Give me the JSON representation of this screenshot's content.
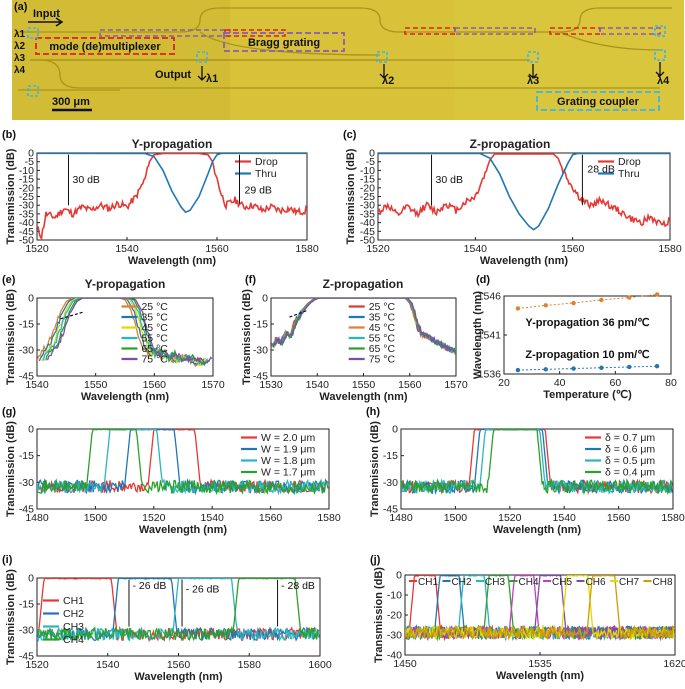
{
  "photo": {
    "panel_label": "(a)",
    "channels": [
      "λ1",
      "λ2",
      "λ3",
      "λ4"
    ],
    "input_label": "Input",
    "output_label": "Output",
    "mux_label": "mode (de)multiplexer",
    "bragg_label": "Bragg grating",
    "coupler_label": "Grating coupler",
    "scale_label": "300 μm",
    "out_lambdas": [
      "λ1",
      "λ2",
      "λ3",
      "λ4"
    ],
    "colors": {
      "chip": "#d8c23a",
      "mux": "#e02020",
      "bragg": "#8a5ab8",
      "coupler": "#3fb3e6"
    }
  },
  "colors": {
    "red": "#e53935",
    "blue": "#1f77b4",
    "teal": "#2bb5c0",
    "green": "#2ca02c",
    "orange": "#e08030",
    "purple": "#7b4fa8",
    "olive": "#b0a020",
    "gold": "#c8a000",
    "yellow": "#e6d800",
    "magenta": "#c040c0",
    "pink": "#e060a0"
  },
  "chart_data": [
    {
      "id": "b",
      "panel_label": "(b)",
      "type": "line",
      "title": "Y-propagation",
      "xlabel": "Wavelength (nm)",
      "ylabel": "Transmission (dB)",
      "xlim": [
        1520,
        1580
      ],
      "ylim": [
        -50,
        0
      ],
      "xticks": [
        1520,
        1540,
        1560,
        1580
      ],
      "yticks": [
        0,
        -5,
        -10,
        -15,
        -20,
        -25,
        -30,
        -35,
        -40,
        -45,
        -50
      ],
      "legend": [
        "Drop",
        "Thru"
      ],
      "series": [
        {
          "name": "Drop",
          "color": "red",
          "points": [
            [
              1520,
              -43
            ],
            [
              1521,
              -48
            ],
            [
              1522,
              -35
            ],
            [
              1524,
              -37
            ],
            [
              1526,
              -32
            ],
            [
              1528,
              -35
            ],
            [
              1530,
              -31
            ],
            [
              1532,
              -33
            ],
            [
              1534,
              -30
            ],
            [
              1536,
              -32
            ],
            [
              1538,
              -29
            ],
            [
              1540,
              -31
            ],
            [
              1542,
              -25
            ],
            [
              1544,
              -15
            ],
            [
              1545,
              -5
            ],
            [
              1546,
              -1
            ],
            [
              1548,
              -0.3
            ],
            [
              1556,
              -0.3
            ],
            [
              1558,
              -1
            ],
            [
              1559,
              -5
            ],
            [
              1560,
              -15
            ],
            [
              1561,
              -24
            ],
            [
              1562,
              -30
            ],
            [
              1564,
              -27
            ],
            [
              1566,
              -31
            ],
            [
              1568,
              -30
            ],
            [
              1570,
              -33
            ],
            [
              1572,
              -31
            ],
            [
              1574,
              -33
            ],
            [
              1576,
              -32
            ],
            [
              1578,
              -34
            ],
            [
              1580,
              -33
            ]
          ]
        },
        {
          "name": "Thru",
          "color": "blue",
          "points": [
            [
              1520,
              -0.2
            ],
            [
              1544,
              -0.3
            ],
            [
              1546,
              -2
            ],
            [
              1548,
              -10
            ],
            [
              1550,
              -22
            ],
            [
              1552,
              -31
            ],
            [
              1553,
              -34
            ],
            [
              1554,
              -33
            ],
            [
              1556,
              -25
            ],
            [
              1558,
              -12
            ],
            [
              1559,
              -5
            ],
            [
              1560,
              -1
            ],
            [
              1561,
              -0.2
            ],
            [
              1580,
              -0.2
            ]
          ]
        }
      ],
      "annotations": [
        {
          "text": "30 dB",
          "x": 1527,
          "y": -15
        },
        {
          "text": "29 dB",
          "x": 1565,
          "y": -21
        }
      ]
    },
    {
      "id": "c",
      "panel_label": "(c)",
      "type": "line",
      "title": "Z-propagation",
      "xlabel": "Wavelength (nm)",
      "ylabel": "Transmission (dB)",
      "xlim": [
        1520,
        1580
      ],
      "ylim": [
        -50,
        0
      ],
      "xticks": [
        1520,
        1540,
        1560,
        1580
      ],
      "yticks": [
        0,
        -5,
        -10,
        -15,
        -20,
        -25,
        -30,
        -35,
        -40,
        -45,
        -50
      ],
      "legend": [
        "Drop",
        "Thru"
      ],
      "series": [
        {
          "name": "Drop",
          "color": "red",
          "points": [
            [
              1520,
              -34
            ],
            [
              1522,
              -30
            ],
            [
              1524,
              -36
            ],
            [
              1526,
              -31
            ],
            [
              1528,
              -35
            ],
            [
              1530,
              -30
            ],
            [
              1532,
              -34
            ],
            [
              1534,
              -29
            ],
            [
              1536,
              -33
            ],
            [
              1538,
              -28
            ],
            [
              1540,
              -25
            ],
            [
              1542,
              -12
            ],
            [
              1543,
              -4
            ],
            [
              1544,
              -0.5
            ],
            [
              1556,
              -0.5
            ],
            [
              1557,
              -3
            ],
            [
              1558,
              -10
            ],
            [
              1560,
              -20
            ],
            [
              1562,
              -28
            ],
            [
              1564,
              -30
            ],
            [
              1566,
              -27
            ],
            [
              1568,
              -31
            ],
            [
              1570,
              -34
            ],
            [
              1572,
              -38
            ],
            [
              1574,
              -40
            ],
            [
              1576,
              -37
            ],
            [
              1578,
              -41
            ],
            [
              1580,
              -39
            ]
          ]
        },
        {
          "name": "Thru",
          "color": "blue",
          "points": [
            [
              1520,
              -0.3
            ],
            [
              1541,
              -0.3
            ],
            [
              1543,
              -3
            ],
            [
              1545,
              -12
            ],
            [
              1547,
              -25
            ],
            [
              1549,
              -35
            ],
            [
              1551,
              -42
            ],
            [
              1552,
              -44
            ],
            [
              1553,
              -42
            ],
            [
              1555,
              -32
            ],
            [
              1557,
              -18
            ],
            [
              1559,
              -6
            ],
            [
              1560,
              -1
            ],
            [
              1561,
              -0.3
            ],
            [
              1580,
              -0.3
            ]
          ]
        }
      ],
      "annotations": [
        {
          "text": "30 dB",
          "x": 1531,
          "y": -15
        },
        {
          "text": "28 dB",
          "x": 1562,
          "y": -9
        }
      ]
    },
    {
      "id": "e",
      "panel_label": "(e)",
      "type": "line",
      "title": "Y-propagation",
      "xlabel": "Wavelength (nm)",
      "ylabel": "Transmission (dB)",
      "xlim": [
        1540,
        1570
      ],
      "ylim": [
        -45,
        0
      ],
      "xticks": [
        1540,
        1550,
        1560,
        1570
      ],
      "yticks": [
        0,
        -15,
        -30,
        -45
      ],
      "legend": [
        "25 °C",
        "35 °C",
        "45 °C",
        "55 °C",
        "65 °C",
        "75 °C"
      ],
      "series": [
        {
          "name": "25 °C",
          "color": "orange",
          "shift": 0
        },
        {
          "name": "35 °C",
          "color": "blue",
          "shift": 0.4
        },
        {
          "name": "45 °C",
          "color": "yellow",
          "shift": 0.8
        },
        {
          "name": "55 °C",
          "color": "teal",
          "shift": 1.1
        },
        {
          "name": "65 °C",
          "color": "green",
          "shift": 1.5
        },
        {
          "name": "75 °C",
          "color": "purple",
          "shift": 1.8
        }
      ],
      "base_points": [
        [
          1540,
          -35
        ],
        [
          1541,
          -30
        ],
        [
          1542,
          -26
        ],
        [
          1543,
          -17
        ],
        [
          1544,
          -8
        ],
        [
          1545,
          -2
        ],
        [
          1546,
          0
        ],
        [
          1554,
          0
        ],
        [
          1555,
          -1
        ],
        [
          1556,
          -7
        ],
        [
          1557,
          -18
        ],
        [
          1558,
          -28
        ],
        [
          1559,
          -33
        ],
        [
          1560,
          -30
        ],
        [
          1561,
          -35
        ],
        [
          1562,
          -32
        ],
        [
          1563,
          -36
        ],
        [
          1565,
          -34
        ],
        [
          1567,
          -38
        ],
        [
          1568,
          -35
        ]
      ]
    },
    {
      "id": "f",
      "panel_label": "(f)",
      "type": "line",
      "title": "Z-propagation",
      "xlabel": "Wavelength (nm)",
      "ylabel": "Transmission (dB)",
      "xlim": [
        1530,
        1570
      ],
      "ylim": [
        -45,
        0
      ],
      "xticks": [
        1530,
        1540,
        1550,
        1560,
        1570
      ],
      "yticks": [
        0,
        -15,
        -30,
        -45
      ],
      "legend": [
        "25 °C",
        "35 °C",
        "45 °C",
        "55 °C",
        "65 °C",
        "75 °C"
      ],
      "series": [
        {
          "name": "25 °C",
          "color": "red",
          "shift": 0
        },
        {
          "name": "35 °C",
          "color": "blue",
          "shift": 0.1
        },
        {
          "name": "45 °C",
          "color": "orange",
          "shift": 0.2
        },
        {
          "name": "55 °C",
          "color": "teal",
          "shift": 0.3
        },
        {
          "name": "65 °C",
          "color": "green",
          "shift": 0.4
        },
        {
          "name": "75 °C",
          "color": "purple",
          "shift": 0.5
        }
      ],
      "base_points": [
        [
          1530,
          -28
        ],
        [
          1531,
          -24
        ],
        [
          1532,
          -26
        ],
        [
          1533,
          -20
        ],
        [
          1534,
          -22
        ],
        [
          1535,
          -14
        ],
        [
          1536,
          -10
        ],
        [
          1537,
          -6
        ],
        [
          1538,
          -3
        ],
        [
          1539,
          -1
        ],
        [
          1540,
          0
        ],
        [
          1559,
          0
        ],
        [
          1560,
          -3
        ],
        [
          1561,
          -12
        ],
        [
          1562,
          -20
        ],
        [
          1564,
          -23
        ],
        [
          1566,
          -26
        ],
        [
          1568,
          -29
        ],
        [
          1570,
          -31
        ]
      ]
    },
    {
      "id": "d",
      "panel_label": "(d)",
      "type": "scatter",
      "xlabel": "Temperature (℃)",
      "ylabel": "Wavelength (nm)",
      "xlim": [
        20,
        80
      ],
      "ylim": [
        1536,
        1546
      ],
      "xticks": [
        20,
        40,
        60,
        80
      ],
      "yticks": [
        1536,
        1541,
        1546
      ],
      "series": [
        {
          "name": "Y-propagation",
          "color": "orange",
          "x": [
            25,
            35,
            45,
            55,
            65,
            75
          ],
          "y": [
            1544.4,
            1544.8,
            1545.1,
            1545.5,
            1545.8,
            1546.2
          ]
        },
        {
          "name": "Z-propagation",
          "color": "blue",
          "x": [
            25,
            35,
            45,
            55,
            65,
            75
          ],
          "y": [
            1536.5,
            1536.6,
            1536.7,
            1536.8,
            1536.9,
            1537.0
          ]
        }
      ],
      "annotations": [
        {
          "text": "Y-propagation  36 pm/℃"
        },
        {
          "text": "Z-propagation  10 pm/℃"
        }
      ]
    },
    {
      "id": "g",
      "panel_label": "(g)",
      "type": "line",
      "xlabel": "Wavelength (nm)",
      "ylabel": "Transmission (dB)",
      "xlim": [
        1480,
        1580
      ],
      "ylim": [
        -45,
        0
      ],
      "xticks": [
        1480,
        1500,
        1520,
        1540,
        1560,
        1580
      ],
      "yticks": [
        0,
        -15,
        -30,
        -45
      ],
      "legend": [
        "W = 2.0 μm",
        "W = 1.9 μm",
        "W = 1.8 μm",
        "W = 1.7 μm"
      ],
      "series": [
        {
          "name": "W = 2.0 μm",
          "color": "red",
          "x0": 1520,
          "x1": 1534
        },
        {
          "name": "W = 1.9 μm",
          "color": "blue",
          "x0": 1512,
          "x1": 1527
        },
        {
          "name": "W = 1.8 μm",
          "color": "teal",
          "x0": 1505,
          "x1": 1521
        },
        {
          "name": "W = 1.7 μm",
          "color": "green",
          "x0": 1499,
          "x1": 1514
        }
      ]
    },
    {
      "id": "h",
      "panel_label": "(h)",
      "type": "line",
      "xlabel": "Wavelength (nm)",
      "ylabel": "Transmission (dB)",
      "xlim": [
        1480,
        1580
      ],
      "ylim": [
        -45,
        0
      ],
      "xticks": [
        1480,
        1500,
        1520,
        1540,
        1560,
        1580
      ],
      "yticks": [
        0,
        -15,
        -30,
        -45
      ],
      "legend": [
        "δ = 0.7 μm",
        "δ = 0.6 μm",
        "δ = 0.5 μm",
        "δ = 0.4 μm"
      ],
      "series": [
        {
          "name": "δ = 0.7 μm",
          "color": "red",
          "x0": 1507,
          "x1": 1533
        },
        {
          "name": "δ = 0.6 μm",
          "color": "blue",
          "x0": 1509,
          "x1": 1532
        },
        {
          "name": "δ = 0.5 μm",
          "color": "teal",
          "x0": 1511,
          "x1": 1531
        },
        {
          "name": "δ = 0.4 μm",
          "color": "green",
          "x0": 1514,
          "x1": 1530
        }
      ]
    },
    {
      "id": "i",
      "panel_label": "(i)",
      "type": "line",
      "xlabel": "Wavelength (nm)",
      "ylabel": "Transmission (dB)",
      "xlim": [
        1520,
        1600
      ],
      "ylim": [
        -45,
        0
      ],
      "xticks": [
        1520,
        1540,
        1560,
        1580,
        1600
      ],
      "yticks": [
        0,
        -15,
        -30,
        -45
      ],
      "legend": [
        "CH1",
        "CH2",
        "CH3",
        "CH4"
      ],
      "series": [
        {
          "name": "CH1",
          "color": "red",
          "x0": 1522,
          "x1": 1541
        },
        {
          "name": "CH2",
          "color": "blue",
          "x0": 1543,
          "x1": 1558
        },
        {
          "name": "CH3",
          "color": "teal",
          "x0": 1560,
          "x1": 1575
        },
        {
          "name": "CH4",
          "color": "green",
          "x0": 1577,
          "x1": 1593
        }
      ],
      "annotations": [
        {
          "text": "26 dB"
        },
        {
          "text": "26 dB"
        },
        {
          "text": "28 dB"
        }
      ]
    },
    {
      "id": "j",
      "panel_label": "(j)",
      "type": "line",
      "xlabel": "Wavelength (nm)",
      "ylabel": "Transmission (dB)",
      "xlim": [
        1450,
        1620
      ],
      "ylim": [
        -40,
        0
      ],
      "xticks": [
        1450,
        1535,
        1620
      ],
      "yticks": [
        0,
        -10,
        -20,
        -30,
        -40
      ],
      "legend": [
        "CH1",
        "CH2",
        "CH3",
        "CH4",
        "CH5",
        "CH6",
        "CH7",
        "CH8"
      ],
      "series": [
        {
          "name": "CH1",
          "color": "red",
          "x0": 1456,
          "x1": 1469
        },
        {
          "name": "CH2",
          "color": "blue",
          "x0": 1472,
          "x1": 1484
        },
        {
          "name": "CH3",
          "color": "teal",
          "x0": 1487,
          "x1": 1500
        },
        {
          "name": "CH4",
          "color": "green",
          "x0": 1503,
          "x1": 1515
        },
        {
          "name": "CH5",
          "color": "magenta",
          "x0": 1519,
          "x1": 1531
        },
        {
          "name": "CH6",
          "color": "purple",
          "x0": 1535,
          "x1": 1548
        },
        {
          "name": "CH7",
          "color": "yellow",
          "x0": 1552,
          "x1": 1565
        },
        {
          "name": "CH8",
          "color": "gold",
          "x0": 1568,
          "x1": 1582
        }
      ]
    }
  ]
}
